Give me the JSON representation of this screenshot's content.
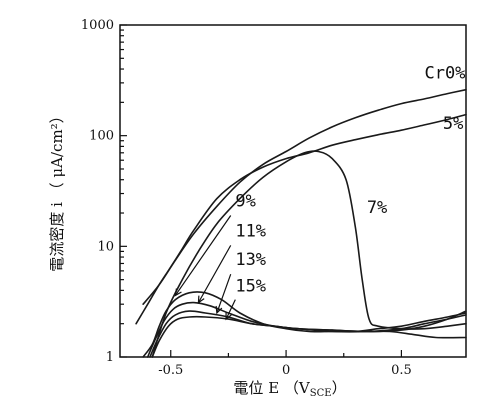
{
  "chart_data": {
    "type": "line",
    "title": "",
    "xlabel": "電位 E （V SCE ）",
    "xlabel_parts": {
      "main": "電位 E （V",
      "sub": "SCE",
      "close": "）"
    },
    "ylabel": "電流密度 i （ μA/cm²）",
    "xlim": [
      -0.72,
      0.78
    ],
    "ylim": [
      1,
      1000
    ],
    "yscale": "log",
    "grid": false,
    "x_ticks": [
      {
        "value": -0.5,
        "label": "-0.5"
      },
      {
        "value": 0,
        "label": "0"
      },
      {
        "value": 0.5,
        "label": "0.5"
      }
    ],
    "y_ticks": [
      {
        "value": 1,
        "label": "1"
      },
      {
        "value": 10,
        "label": "10"
      },
      {
        "value": 100,
        "label": "100"
      },
      {
        "value": 1000,
        "label": "1000"
      }
    ],
    "series": [
      {
        "name": "Cr0%",
        "x": [
          -0.62,
          -0.55,
          -0.48,
          -0.4,
          -0.3,
          -0.2,
          -0.1,
          0.0,
          0.1,
          0.2,
          0.3,
          0.4,
          0.5,
          0.6,
          0.7,
          0.78
        ],
        "y": [
          3.0,
          4.5,
          7.5,
          13,
          23,
          38,
          55,
          72,
          95,
          120,
          145,
          170,
          195,
          215,
          240,
          260
        ]
      },
      {
        "name": "5%",
        "x": [
          -0.65,
          -0.6,
          -0.55,
          -0.5,
          -0.45,
          -0.4,
          -0.3,
          -0.2,
          -0.1,
          0.0,
          0.1,
          0.2,
          0.3,
          0.4,
          0.5,
          0.6,
          0.7,
          0.78
        ],
        "y": [
          2.0,
          3.0,
          4.5,
          6.5,
          9.5,
          14,
          27,
          40,
          52,
          62,
          70,
          82,
          92,
          102,
          112,
          125,
          140,
          155
        ]
      },
      {
        "name": "7%",
        "x": [
          -0.58,
          -0.52,
          -0.45,
          -0.38,
          -0.3,
          -0.2,
          -0.1,
          0.0,
          0.08,
          0.14,
          0.2,
          0.26,
          0.3,
          0.33,
          0.36,
          0.4,
          0.5,
          0.6,
          0.7,
          0.78
        ],
        "y": [
          1.0,
          2.5,
          5.0,
          9.0,
          16,
          27,
          42,
          58,
          70,
          72,
          62,
          40,
          15,
          5,
          2.2,
          1.9,
          1.8,
          1.8,
          1.9,
          2.0
        ]
      },
      {
        "name": "9%",
        "x": [
          -0.62,
          -0.58,
          -0.55,
          -0.52,
          -0.48,
          -0.42,
          -0.35,
          -0.28,
          -0.2,
          -0.1,
          0.0,
          0.1,
          0.2,
          0.3,
          0.4,
          0.5,
          0.6,
          0.7,
          0.78
        ],
        "y": [
          1.0,
          1.3,
          1.9,
          2.6,
          3.3,
          3.8,
          3.8,
          3.3,
          2.5,
          2.0,
          1.8,
          1.7,
          1.7,
          1.7,
          1.8,
          1.9,
          2.1,
          2.3,
          2.5
        ]
      },
      {
        "name": "11%",
        "x": [
          -0.6,
          -0.57,
          -0.53,
          -0.49,
          -0.45,
          -0.4,
          -0.33,
          -0.25,
          -0.15,
          -0.05,
          0.05,
          0.2,
          0.35,
          0.5,
          0.6,
          0.7,
          0.78
        ],
        "y": [
          1.0,
          1.4,
          2.1,
          2.7,
          3.0,
          3.1,
          2.9,
          2.5,
          2.1,
          1.9,
          1.8,
          1.7,
          1.7,
          1.8,
          2.0,
          2.2,
          2.4
        ]
      },
      {
        "name": "13%",
        "x": [
          -0.59,
          -0.56,
          -0.52,
          -0.48,
          -0.42,
          -0.35,
          -0.25,
          -0.15,
          -0.05,
          0.05,
          0.2,
          0.35,
          0.5,
          0.6,
          0.7,
          0.78
        ],
        "y": [
          1.0,
          1.4,
          2.0,
          2.4,
          2.6,
          2.5,
          2.3,
          2.0,
          1.9,
          1.8,
          1.75,
          1.7,
          1.75,
          1.9,
          2.2,
          2.6
        ]
      },
      {
        "name": "15%",
        "x": [
          -0.58,
          -0.55,
          -0.51,
          -0.47,
          -0.42,
          -0.35,
          -0.25,
          -0.15,
          -0.05,
          0.05,
          0.2,
          0.35,
          0.45,
          0.55,
          0.65,
          0.78
        ],
        "y": [
          1.0,
          1.4,
          1.9,
          2.2,
          2.3,
          2.3,
          2.2,
          2.0,
          1.9,
          1.8,
          1.75,
          1.7,
          1.7,
          1.6,
          1.5,
          1.5
        ]
      }
    ],
    "annotations": [
      {
        "text": "Cr0%",
        "x": 0.6,
        "y": 330
      },
      {
        "text": "5%",
        "x": 0.68,
        "y": 115
      },
      {
        "text": "7%",
        "x": 0.35,
        "y": 20
      },
      {
        "text": "9%",
        "x": -0.22,
        "y": 23
      },
      {
        "text": "11%",
        "x": -0.22,
        "y": 12.3
      },
      {
        "text": "13%",
        "x": -0.22,
        "y": 6.8
      },
      {
        "text": "15%",
        "x": -0.22,
        "y": 3.9
      }
    ],
    "arrows": [
      {
        "series": "9%",
        "from": [
          -0.24,
          19
        ],
        "to": [
          -0.48,
          3.6
        ]
      },
      {
        "series": "11%",
        "from": [
          -0.24,
          10.2
        ],
        "to": [
          -0.38,
          3.1
        ]
      },
      {
        "series": "13%",
        "from": [
          -0.24,
          5.6
        ],
        "to": [
          -0.3,
          2.5
        ]
      },
      {
        "series": "15%",
        "from": [
          -0.22,
          3.3
        ],
        "to": [
          -0.26,
          2.2
        ]
      }
    ]
  }
}
